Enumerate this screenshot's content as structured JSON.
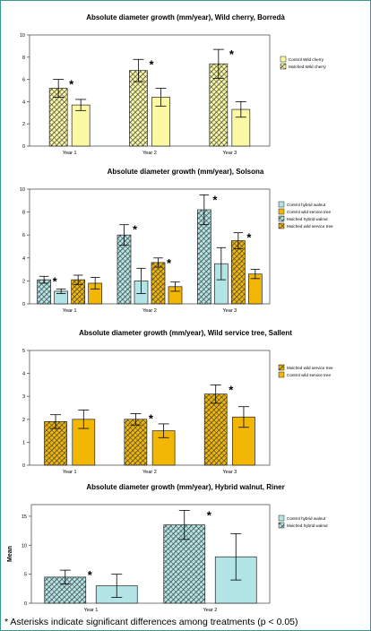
{
  "footnote": "* Asterisks indicate significant differences among treatments (p < 0.05)",
  "colors": {
    "yellow": "#fcf9a4",
    "teal": "#b3e5e6",
    "orange": "#f2b705",
    "outline": "#222222",
    "frame": "#3a9b8a"
  },
  "chart_data": [
    {
      "type": "bar",
      "title": "Absolute diameter growth (mm/year), Wild cherry, Borredà",
      "categories": [
        "Year 1",
        "Year 2",
        "Year 3"
      ],
      "ylim": [
        0,
        10
      ],
      "yticks": [
        "0",
        "2",
        "4",
        "6",
        "8",
        "10"
      ],
      "ylabel": "",
      "legend_position": "right",
      "series": [
        {
          "name": "Control Wild cherry",
          "color": "#fcf9a4",
          "hatched": false,
          "values": [
            3.7,
            4.4,
            3.3
          ],
          "err": [
            0.5,
            0.8,
            0.7
          ],
          "star": [
            false,
            false,
            false
          ]
        },
        {
          "name": "Mulched Wild cherry",
          "color": "#fcf9a4",
          "hatched": true,
          "values": [
            5.2,
            6.8,
            7.4
          ],
          "err": [
            0.8,
            1.0,
            1.3
          ],
          "star": [
            true,
            true,
            true
          ]
        }
      ],
      "bar_order": [
        1,
        0
      ]
    },
    {
      "type": "bar",
      "title": "Absolute diameter growth (mm/year), Solsona",
      "categories": [
        "Year 1",
        "Year 2",
        "Year 3"
      ],
      "ylim": [
        0,
        10
      ],
      "yticks": [
        "0",
        "2",
        "4",
        "6",
        "8",
        "10"
      ],
      "ylabel": "",
      "legend_position": "right",
      "series": [
        {
          "name": "Control hybrid walnut",
          "color": "#b3e5e6",
          "hatched": false,
          "values": [
            1.1,
            2.0,
            3.5
          ],
          "err": [
            0.2,
            1.1,
            1.4
          ],
          "star": [
            false,
            false,
            false
          ]
        },
        {
          "name": "Control wild service tree",
          "color": "#f2b705",
          "hatched": false,
          "values": [
            1.8,
            1.5,
            2.6
          ],
          "err": [
            0.5,
            0.4,
            0.4
          ],
          "star": [
            false,
            false,
            false
          ]
        },
        {
          "name": "Mulched hybrid walnut",
          "color": "#b3e5e6",
          "hatched": true,
          "values": [
            2.1,
            6.0,
            8.2
          ],
          "err": [
            0.3,
            0.9,
            1.3
          ],
          "star": [
            true,
            true,
            true
          ]
        },
        {
          "name": "Mulched wild service tree",
          "color": "#f2b705",
          "hatched": true,
          "values": [
            2.1,
            3.6,
            5.5
          ],
          "err": [
            0.4,
            0.4,
            0.7
          ],
          "star": [
            false,
            true,
            true
          ]
        }
      ],
      "bar_order": [
        2,
        0,
        3,
        1
      ]
    },
    {
      "type": "bar",
      "title": "Absolute diameter growth (mm/year), Wild service tree, Sallent",
      "categories": [
        "Year 1",
        "Year 2",
        "Year 3"
      ],
      "ylim": [
        0,
        5
      ],
      "yticks": [
        "0",
        "1",
        "2",
        "3",
        "4",
        "5"
      ],
      "ylabel": "",
      "legend_position": "right",
      "series": [
        {
          "name": "Mulched wild service tree",
          "color": "#f2b705",
          "hatched": true,
          "values": [
            1.9,
            2.0,
            3.1
          ],
          "err": [
            0.3,
            0.25,
            0.4
          ],
          "star": [
            false,
            true,
            true
          ]
        },
        {
          "name": "Control wild service tree",
          "color": "#f2b705",
          "hatched": false,
          "values": [
            2.0,
            1.5,
            2.1
          ],
          "err": [
            0.4,
            0.3,
            0.45
          ],
          "star": [
            false,
            false,
            false
          ]
        }
      ],
      "bar_order": [
        0,
        1
      ]
    },
    {
      "type": "bar",
      "title": "Absolute diameter growth (mm/year), Hybrid walnut, Riner",
      "categories": [
        "Year 1",
        "Year 2"
      ],
      "ylim": [
        0,
        17
      ],
      "yticks": [
        "0",
        "5",
        "10",
        "15"
      ],
      "ylabel": "Mean",
      "legend_position": "right",
      "series": [
        {
          "name": "Control hybrid walnut",
          "color": "#b3e5e6",
          "hatched": false,
          "values": [
            3.0,
            8.0
          ],
          "err": [
            2.0,
            4.0
          ],
          "star": [
            false,
            false
          ]
        },
        {
          "name": "Mulched hybrid walnut",
          "color": "#b3e5e6",
          "hatched": true,
          "values": [
            4.5,
            13.5
          ],
          "err": [
            1.2,
            2.5
          ],
          "star": [
            true,
            true
          ]
        }
      ],
      "bar_order": [
        1,
        0
      ]
    }
  ]
}
